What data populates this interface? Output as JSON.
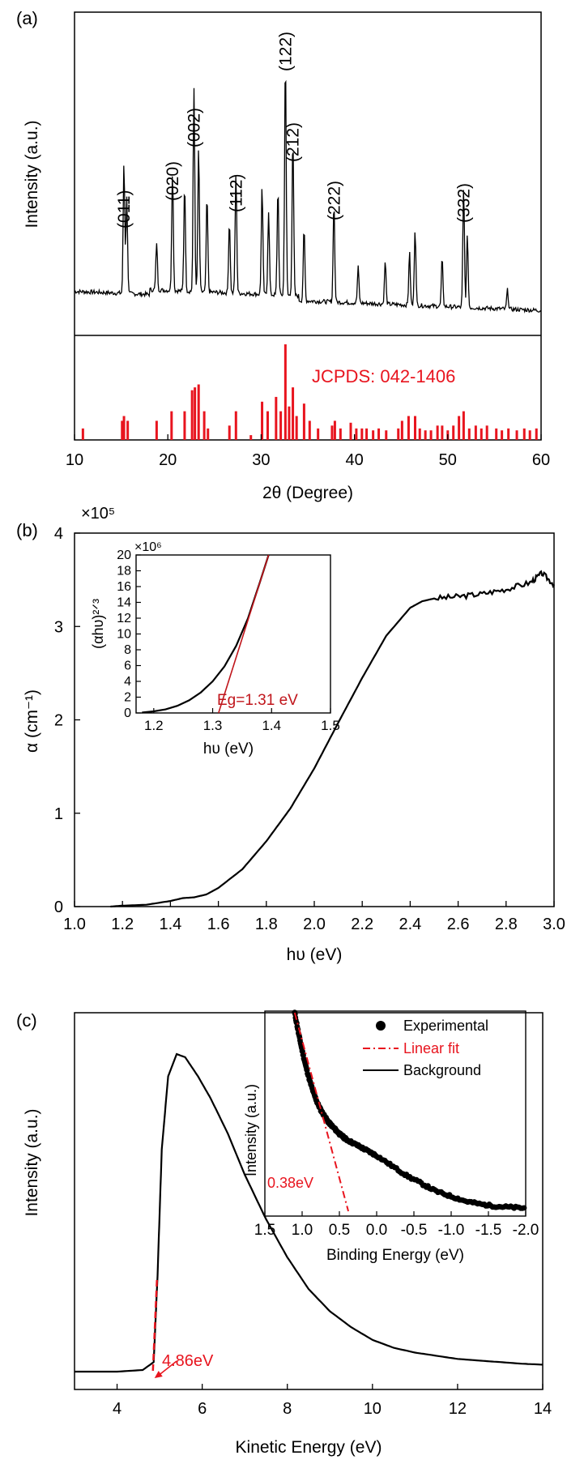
{
  "panels": [
    {
      "id": "a",
      "label": "(a)",
      "chart_data": {
        "type": "line",
        "xlabel": "2θ (Degree)",
        "ylabel": "Intensity (a.u.)",
        "xlim": [
          10,
          60
        ],
        "xticks": [
          "10",
          "20",
          "30",
          "40",
          "50",
          "60"
        ],
        "peak_labels": [
          {
            "text": "(011)",
            "x": 15.3
          },
          {
            "text": "(020)",
            "x": 20.5
          },
          {
            "text": "(002)",
            "x": 22.8
          },
          {
            "text": "(112)",
            "x": 27.3
          },
          {
            "text": "(122)",
            "x": 32.6
          },
          {
            "text": "(212)",
            "x": 33.4
          },
          {
            "text": "(222)",
            "x": 37.8
          },
          {
            "text": "(332)",
            "x": 51.7
          }
        ],
        "pattern_peaks": [
          {
            "x": 15.3,
            "h": 0.55
          },
          {
            "x": 15.6,
            "h": 0.4
          },
          {
            "x": 18.8,
            "h": 0.2
          },
          {
            "x": 20.5,
            "h": 0.5
          },
          {
            "x": 21.8,
            "h": 0.45
          },
          {
            "x": 22.8,
            "h": 0.85
          },
          {
            "x": 23.3,
            "h": 0.6
          },
          {
            "x": 24.2,
            "h": 0.4
          },
          {
            "x": 26.6,
            "h": 0.3
          },
          {
            "x": 27.3,
            "h": 0.5
          },
          {
            "x": 30.1,
            "h": 0.45
          },
          {
            "x": 30.8,
            "h": 0.35
          },
          {
            "x": 31.8,
            "h": 0.45
          },
          {
            "x": 32.6,
            "h": 1.0
          },
          {
            "x": 33.4,
            "h": 0.66
          },
          {
            "x": 34.6,
            "h": 0.3
          },
          {
            "x": 37.8,
            "h": 0.42
          },
          {
            "x": 40.4,
            "h": 0.15
          },
          {
            "x": 43.3,
            "h": 0.18
          },
          {
            "x": 45.9,
            "h": 0.22
          },
          {
            "x": 46.5,
            "h": 0.32
          },
          {
            "x": 49.4,
            "h": 0.2
          },
          {
            "x": 51.7,
            "h": 0.5
          },
          {
            "x": 52.1,
            "h": 0.3
          },
          {
            "x": 56.4,
            "h": 0.08
          }
        ],
        "reference": {
          "label": "JCPDS: 042-1406",
          "color": "#e8141e",
          "sticks": [
            [
              10.9,
              0.12
            ],
            [
              15.1,
              0.2
            ],
            [
              15.3,
              0.25
            ],
            [
              15.7,
              0.2
            ],
            [
              18.8,
              0.2
            ],
            [
              20.4,
              0.3
            ],
            [
              21.8,
              0.3
            ],
            [
              22.6,
              0.52
            ],
            [
              22.9,
              0.55
            ],
            [
              23.3,
              0.58
            ],
            [
              23.9,
              0.3
            ],
            [
              24.3,
              0.12
            ],
            [
              26.6,
              0.15
            ],
            [
              27.3,
              0.3
            ],
            [
              28.9,
              0.05
            ],
            [
              30.1,
              0.4
            ],
            [
              30.7,
              0.3
            ],
            [
              31.6,
              0.45
            ],
            [
              32.1,
              0.3
            ],
            [
              32.6,
              1.0
            ],
            [
              33.0,
              0.35
            ],
            [
              33.4,
              0.55
            ],
            [
              33.8,
              0.25
            ],
            [
              34.6,
              0.38
            ],
            [
              35.2,
              0.2
            ],
            [
              36.1,
              0.12
            ],
            [
              37.6,
              0.15
            ],
            [
              37.9,
              0.2
            ],
            [
              38.5,
              0.12
            ],
            [
              39.6,
              0.18
            ],
            [
              40.2,
              0.12
            ],
            [
              40.8,
              0.12
            ],
            [
              41.3,
              0.12
            ],
            [
              42.0,
              0.1
            ],
            [
              42.6,
              0.12
            ],
            [
              43.4,
              0.1
            ],
            [
              44.7,
              0.12
            ],
            [
              45.1,
              0.2
            ],
            [
              45.8,
              0.25
            ],
            [
              46.5,
              0.25
            ],
            [
              47.0,
              0.12
            ],
            [
              47.6,
              0.1
            ],
            [
              48.2,
              0.1
            ],
            [
              48.9,
              0.15
            ],
            [
              49.4,
              0.15
            ],
            [
              50.0,
              0.1
            ],
            [
              50.6,
              0.15
            ],
            [
              51.2,
              0.25
            ],
            [
              51.7,
              0.3
            ],
            [
              52.3,
              0.12
            ],
            [
              53.0,
              0.15
            ],
            [
              53.6,
              0.12
            ],
            [
              54.2,
              0.15
            ],
            [
              55.2,
              0.12
            ],
            [
              55.8,
              0.1
            ],
            [
              56.5,
              0.12
            ],
            [
              57.4,
              0.1
            ],
            [
              58.2,
              0.12
            ],
            [
              58.8,
              0.1
            ],
            [
              59.5,
              0.12
            ]
          ]
        }
      }
    },
    {
      "id": "b",
      "label": "(b)",
      "chart_data": {
        "type": "line",
        "xlabel": "hυ (eV)",
        "ylabel": "α (cm⁻¹)",
        "multiplier": "×10⁵",
        "xlim": [
          1.0,
          3.0
        ],
        "ylim": [
          0,
          4
        ],
        "xticks": [
          "1.0",
          "1.2",
          "1.4",
          "1.6",
          "1.8",
          "2.0",
          "2.2",
          "2.4",
          "2.6",
          "2.8",
          "3.0"
        ],
        "yticks": [
          "0",
          "1",
          "2",
          "3",
          "4"
        ],
        "series": [
          {
            "x": [
              1.15,
              1.2,
              1.3,
              1.4,
              1.45,
              1.5,
              1.55,
              1.6,
              1.7,
              1.8,
              1.9,
              2.0,
              2.1,
              2.2,
              2.3,
              2.4,
              2.45,
              2.5,
              2.6,
              2.7,
              2.8,
              2.9,
              2.95,
              3.0
            ],
            "y": [
              0.0,
              0.01,
              0.02,
              0.06,
              0.09,
              0.1,
              0.13,
              0.2,
              0.4,
              0.7,
              1.05,
              1.48,
              1.97,
              2.45,
              2.9,
              3.2,
              3.27,
              3.3,
              3.32,
              3.35,
              3.4,
              3.47,
              3.57,
              3.45
            ]
          }
        ],
        "inset": {
          "xlabel": "hυ (eV)",
          "ylabel": "(αhυ)²ᐟ³",
          "multiplier": "×10⁶",
          "xlim": [
            1.17,
            1.5
          ],
          "ylim": [
            0,
            20
          ],
          "xticks": [
            "1.2",
            "1.3",
            "1.4",
            "1.5"
          ],
          "yticks": [
            "0",
            "2",
            "4",
            "6",
            "8",
            "10",
            "12",
            "14",
            "16",
            "18",
            "20"
          ],
          "annotation": "Eg=1.31 eV",
          "fit_color": "#c0151b",
          "curve": {
            "x": [
              1.18,
              1.2,
              1.22,
              1.24,
              1.26,
              1.28,
              1.3,
              1.32,
              1.34,
              1.36,
              1.38,
              1.395
            ],
            "y": [
              0.05,
              0.2,
              0.45,
              0.9,
              1.6,
              2.6,
              4.0,
              5.9,
              8.5,
              12.0,
              16.5,
              20.0
            ]
          },
          "fit": {
            "x": [
              1.31,
              1.395
            ],
            "y": [
              0,
              20
            ]
          }
        }
      }
    },
    {
      "id": "c",
      "label": "(c)",
      "chart_data": {
        "type": "line",
        "xlabel": "Kinetic Energy (eV)",
        "ylabel": "Intensity (a.u.)",
        "xlim": [
          3,
          14
        ],
        "xticks": [
          "4",
          "6",
          "8",
          "10",
          "12",
          "14"
        ],
        "series": [
          {
            "x": [
              3,
              4,
              4.6,
              4.86,
              4.95,
              5.05,
              5.2,
              5.4,
              5.6,
              5.9,
              6.2,
              6.6,
              7.0,
              7.5,
              8.0,
              8.5,
              9.0,
              9.5,
              10.0,
              10.5,
              11,
              11.5,
              12,
              12.5,
              13,
              13.5,
              14
            ],
            "y": [
              0.0,
              0.0,
              0.005,
              0.03,
              0.3,
              0.7,
              0.93,
              1.0,
              0.99,
              0.93,
              0.86,
              0.75,
              0.62,
              0.48,
              0.36,
              0.26,
              0.19,
              0.14,
              0.1,
              0.075,
              0.06,
              0.05,
              0.04,
              0.035,
              0.03,
              0.025,
              0.022
            ]
          }
        ],
        "annotation": "4.86eV",
        "inset": {
          "xlabel": "Binding Energy (eV)",
          "ylabel": "Intensity (a.u.)",
          "xlim": [
            1.5,
            -2.0
          ],
          "xticks": [
            "1.5",
            "1.0",
            "0.5",
            "0.0",
            "-0.5",
            "-1.0",
            "-1.5",
            "-2.0"
          ],
          "annotation": "0.38eV",
          "legend": [
            {
              "label": "Experimental",
              "kind": "marker"
            },
            {
              "label": "Linear fit",
              "kind": "dashdot"
            },
            {
              "label": "Background",
              "kind": "line"
            }
          ],
          "experimental": {
            "x": [
              1.1,
              1.05,
              1.0,
              0.95,
              0.9,
              0.85,
              0.8,
              0.75,
              0.7,
              0.65,
              0.6,
              0.55,
              0.5,
              0.45,
              0.4,
              0.3,
              0.2,
              0.1,
              0.0,
              -0.2,
              -0.4,
              -0.6,
              -0.8,
              -1.0,
              -1.2,
              -1.4,
              -1.6,
              -1.8,
              -2.0
            ],
            "y": [
              1.0,
              0.9,
              0.81,
              0.73,
              0.66,
              0.6,
              0.55,
              0.51,
              0.48,
              0.45,
              0.43,
              0.41,
              0.39,
              0.375,
              0.36,
              0.34,
              0.32,
              0.3,
              0.28,
              0.23,
              0.18,
              0.14,
              0.1,
              0.075,
              0.05,
              0.035,
              0.025,
              0.02,
              0.015
            ]
          },
          "fit": {
            "x": [
              1.1,
              0.38
            ],
            "y": [
              1.0,
              0.0
            ]
          }
        }
      }
    }
  ],
  "colors": {
    "red": "#e8141e",
    "darkred": "#c0151b",
    "black": "#000000"
  }
}
